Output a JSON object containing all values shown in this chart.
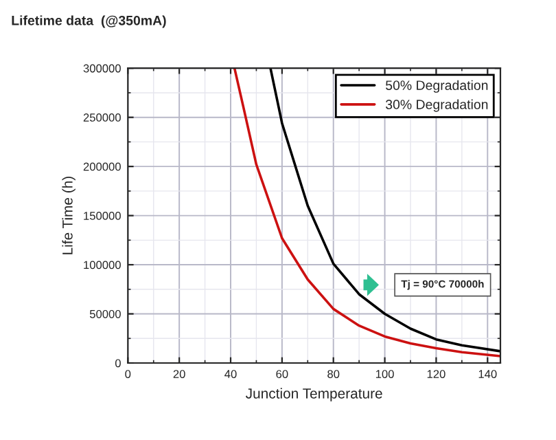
{
  "chart_data": {
    "type": "line",
    "title": "Lifetime data  (@350mA)",
    "xlabel": "Junction Temperature",
    "ylabel": "Life Time (h)",
    "series": [
      {
        "name": "50% Degradation",
        "color": "#000000",
        "x": [
          55.5,
          60,
          70,
          80,
          90,
          100,
          110,
          120,
          130,
          145
        ],
        "values": [
          300000,
          244000,
          160000,
          101000,
          70000,
          50000,
          35000,
          24000,
          18000,
          12000
        ]
      },
      {
        "name": "30% Degradation",
        "color": "#cc1111",
        "x": [
          41.5,
          45,
          50,
          60,
          70,
          80,
          90,
          100,
          110,
          120,
          130,
          145
        ],
        "values": [
          300000,
          260000,
          202000,
          127000,
          85000,
          55000,
          38000,
          27000,
          20000,
          15000,
          11000,
          7000
        ]
      }
    ],
    "xlim": [
      0,
      145
    ],
    "xticks": [
      0,
      20,
      40,
      60,
      80,
      100,
      120,
      140
    ],
    "ylim": [
      0,
      300000
    ],
    "yticks": [
      0,
      50000,
      100000,
      150000,
      200000,
      250000,
      300000
    ],
    "grid": true,
    "legend": "top right",
    "line_style": "solid",
    "marker": "none",
    "annotations": [
      "Tj = 90°C 70000h"
    ]
  }
}
